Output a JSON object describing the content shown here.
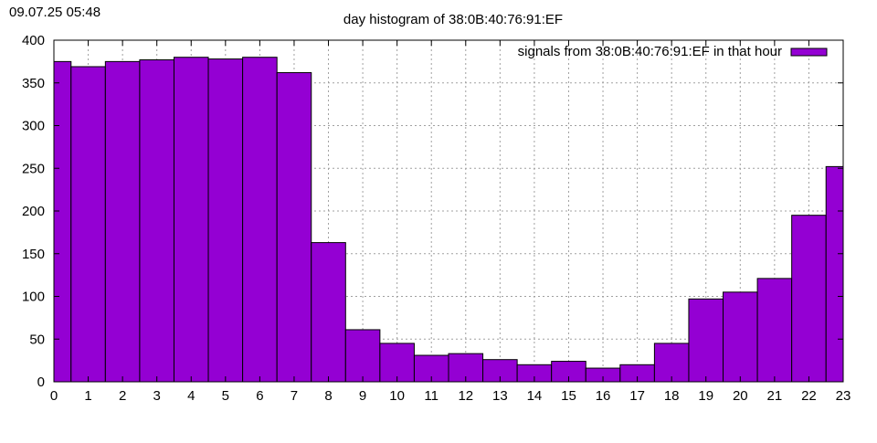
{
  "timestamp": "09.07.25 05:48",
  "chart_data": {
    "type": "bar",
    "title": "day histogram of 38:0B:40:76:91:EF",
    "xlabel": "",
    "ylabel": "",
    "xlim": [
      0,
      23
    ],
    "ylim": [
      0,
      400
    ],
    "x_ticks": [
      "0",
      "1",
      "2",
      "3",
      "4",
      "5",
      "6",
      "7",
      "8",
      "9",
      "10",
      "11",
      "12",
      "13",
      "14",
      "15",
      "16",
      "17",
      "18",
      "19",
      "20",
      "21",
      "22",
      "23"
    ],
    "y_ticks": [
      "0",
      "50",
      "100",
      "150",
      "200",
      "250",
      "300",
      "350",
      "400"
    ],
    "grid": true,
    "legend_position": "top-right",
    "bar_color": "#9400d3",
    "series": [
      {
        "name": "signals from 38:0B:40:76:91:EF in that hour",
        "values": [
          375,
          369,
          375,
          377,
          380,
          378,
          380,
          362,
          163,
          61,
          45,
          31,
          33,
          26,
          20,
          24,
          16,
          20,
          45,
          97,
          105,
          121,
          195,
          252
        ]
      }
    ]
  }
}
